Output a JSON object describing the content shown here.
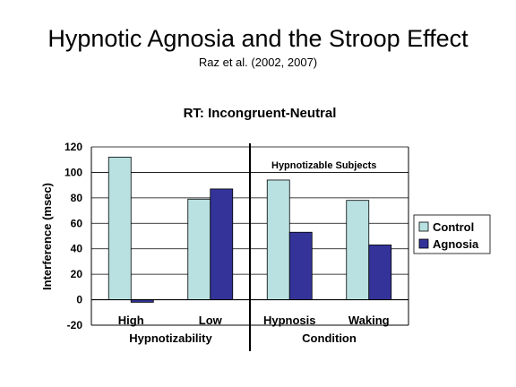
{
  "slide": {
    "title": "Hypnotic Agnosia and the Stroop Effect",
    "subtitle": "Raz et al. (2002, 2007)"
  },
  "chart_data": {
    "type": "bar",
    "title": "RT:  Incongruent-Neutral",
    "ylabel": "Interference (msec)",
    "ylim": [
      -20,
      120
    ],
    "yticks": [
      -20,
      0,
      20,
      40,
      60,
      80,
      100,
      120
    ],
    "grid": true,
    "legend_position": "right",
    "categories": [
      "High",
      "Low",
      "Hypnosis",
      "Waking"
    ],
    "groups": [
      {
        "label": "Hypnotizability",
        "categories": [
          "High",
          "Low"
        ]
      },
      {
        "label": "Condition",
        "categories": [
          "Hypnosis",
          "Waking"
        ]
      }
    ],
    "annotation": "Hypnotizable Subjects",
    "series": [
      {
        "name": "Control",
        "color": "#b9e1e1",
        "values": [
          112,
          79,
          94,
          78
        ]
      },
      {
        "name": "Agnosia",
        "color": "#333399",
        "values": [
          -2,
          87,
          53,
          43
        ]
      }
    ]
  }
}
